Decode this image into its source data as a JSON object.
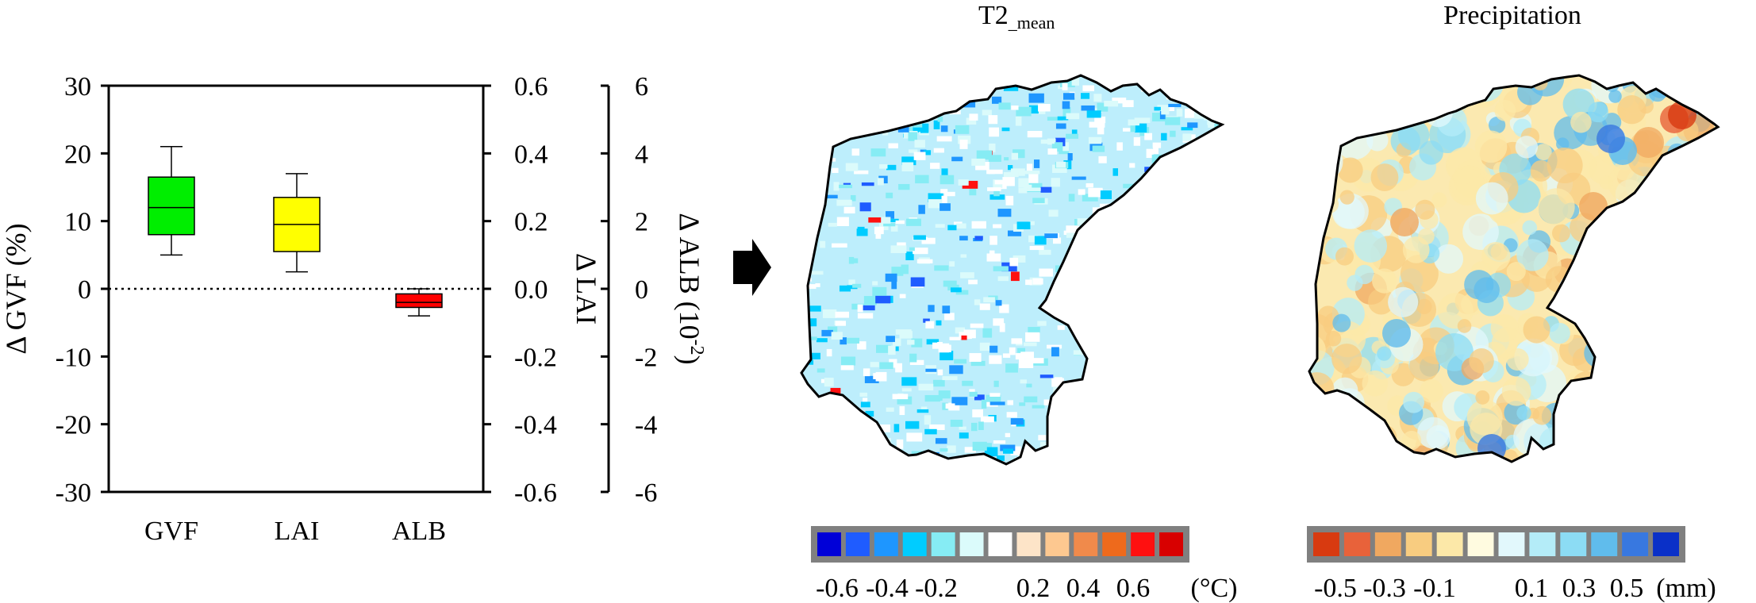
{
  "chart_data": [
    {
      "type": "box",
      "categories": [
        "GVF",
        "LAI",
        "ALB"
      ],
      "series": [
        {
          "name": "GVF",
          "axis": "left",
          "whisker_low": 5,
          "q1": 8,
          "median": 12,
          "q3": 16.5,
          "whisker_high": 21,
          "color": "#00ee00"
        },
        {
          "name": "LAI",
          "axis": "right1",
          "whisker_low": 0.05,
          "q1": 0.11,
          "median": 0.19,
          "q3": 0.27,
          "whisker_high": 0.34,
          "color": "#ffff00"
        },
        {
          "name": "ALB",
          "axis": "right2",
          "whisker_low": -0.8,
          "q1": -0.55,
          "median": -0.4,
          "q3": -0.15,
          "whisker_high": 0,
          "color": "#ff0000"
        }
      ],
      "axes": {
        "left": {
          "label": "Δ GVF (%)",
          "ylim": [
            -30,
            30
          ],
          "ticks": [
            "30",
            "20",
            "10",
            "0",
            "-10",
            "-20",
            "-30"
          ]
        },
        "right1": {
          "label": "Δ LAI",
          "ylim": [
            -0.6,
            0.6
          ],
          "ticks": [
            "0.6",
            "0.4",
            "0.2",
            "0.0",
            "-0.2",
            "-0.4",
            "-0.6"
          ]
        },
        "right2": {
          "label_main": "Δ ALB (10",
          "label_sup": "-2",
          "label_end": ")",
          "ylim": [
            -6,
            6
          ],
          "ticks": [
            "6",
            "4",
            "2",
            "0",
            "-2",
            "-4",
            "-6"
          ]
        }
      },
      "zero_line": "dotted"
    },
    {
      "type": "heatmap",
      "title_main": "T2",
      "title_sub": "_mean",
      "colorbar": {
        "colors": [
          "#0000d8",
          "#1f5cff",
          "#1e96ff",
          "#00ccff",
          "#86ecf4",
          "#dbfbfb",
          "#ffffff",
          "#fde4c8",
          "#fdc890",
          "#f08a4b",
          "#ee6a1c",
          "#ff1010",
          "#d80000"
        ],
        "tick_labels": [
          "-0.6",
          "-0.4",
          "-0.2",
          "0.2",
          "0.4",
          "0.6"
        ],
        "unit": "(°C)"
      }
    },
    {
      "type": "heatmap",
      "title": "Precipitation",
      "colorbar": {
        "colors": [
          "#d83a10",
          "#e8623a",
          "#f0a860",
          "#f8cc80",
          "#fce8a8",
          "#fffbe0",
          "#e2f8fc",
          "#b4ecf8",
          "#8cdcf4",
          "#60bcec",
          "#3878e0",
          "#0a30c8"
        ],
        "tick_labels": [
          "-0.5",
          "-0.3",
          "-0.1",
          "0.1",
          "0.3",
          "0.5"
        ],
        "unit": "(mm)"
      }
    }
  ],
  "colors": {
    "arrow": "#000000",
    "map_outline": "#000000"
  },
  "icons": {
    "arrow": "right-arrow-icon"
  }
}
